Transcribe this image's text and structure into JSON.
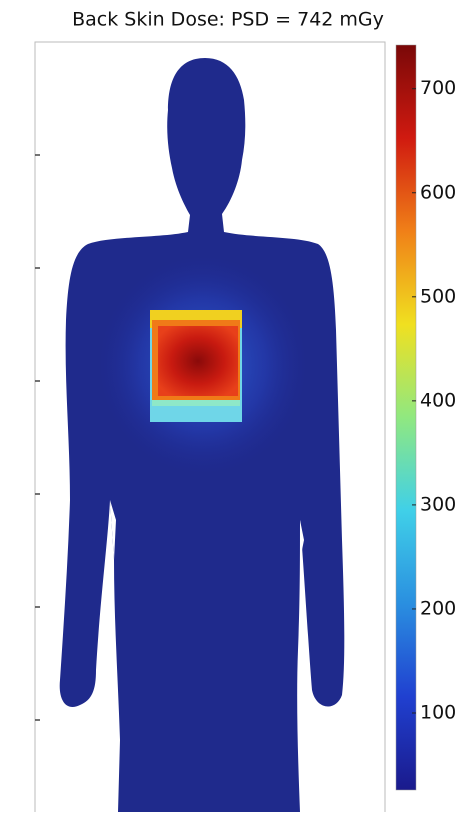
{
  "chart_data": {
    "type": "dose-map",
    "title": "Back Skin Dose: PSD = 742 mGy",
    "colormap": "jet",
    "clim": [
      26,
      742
    ],
    "cticks": [
      100,
      200,
      300,
      400,
      500,
      600,
      700
    ]
  }
}
